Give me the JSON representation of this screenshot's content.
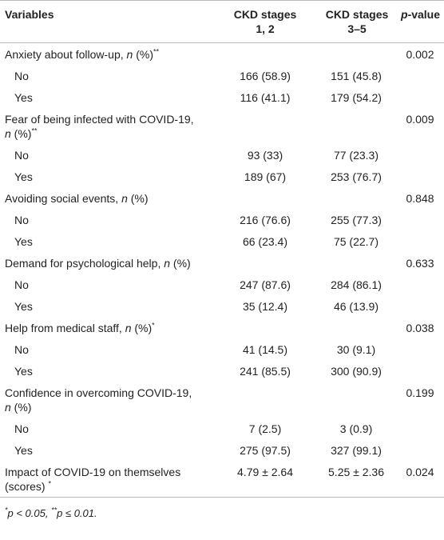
{
  "header": {
    "variables": "Variables",
    "ckd_1_2": "CKD stages 1, 2",
    "ckd_3_5": "CKD stages 3–5",
    "p_value": [
      {
        "text": "p",
        "italic": true
      },
      {
        "text": "-value"
      }
    ]
  },
  "variables": [
    {
      "label": [
        {
          "text": "Anxiety about follow-up, "
        },
        {
          "text": "n",
          "italic": true
        },
        {
          "text": " (%)"
        },
        {
          "text": "**",
          "sup": true
        }
      ],
      "p_value": "0.002",
      "levels": [
        {
          "label": "No",
          "ckd_1_2": "166 (58.9)",
          "ckd_3_5": "151 (45.8)"
        },
        {
          "label": "Yes",
          "ckd_1_2": "116 (41.1)",
          "ckd_3_5": "179 (54.2)"
        }
      ]
    },
    {
      "label": [
        {
          "text": "Fear of being infected with COVID-19, "
        },
        {
          "text": "n",
          "italic": true
        },
        {
          "text": " (%)"
        },
        {
          "text": "**",
          "sup": true
        }
      ],
      "p_value": "0.009",
      "levels": [
        {
          "label": "No",
          "ckd_1_2": "93 (33)",
          "ckd_3_5": "77 (23.3)"
        },
        {
          "label": "Yes",
          "ckd_1_2": "189 (67)",
          "ckd_3_5": "253 (76.7)"
        }
      ]
    },
    {
      "label": [
        {
          "text": "Avoiding social events, "
        },
        {
          "text": "n",
          "italic": true
        },
        {
          "text": " (%)"
        }
      ],
      "p_value": "0.848",
      "levels": [
        {
          "label": "No",
          "ckd_1_2": "216 (76.6)",
          "ckd_3_5": "255 (77.3)"
        },
        {
          "label": "Yes",
          "ckd_1_2": "66 (23.4)",
          "ckd_3_5": "75 (22.7)"
        }
      ]
    },
    {
      "label": [
        {
          "text": "Demand for psychological help, "
        },
        {
          "text": "n",
          "italic": true
        },
        {
          "text": " (%)"
        }
      ],
      "p_value": "0.633",
      "levels": [
        {
          "label": "No",
          "ckd_1_2": "247 (87.6)",
          "ckd_3_5": "284 (86.1)"
        },
        {
          "label": "Yes",
          "ckd_1_2": "35 (12.4)",
          "ckd_3_5": "46 (13.9)"
        }
      ]
    },
    {
      "label": [
        {
          "text": "Help from medical staff, "
        },
        {
          "text": "n",
          "italic": true
        },
        {
          "text": " (%)"
        },
        {
          "text": "*",
          "sup": true
        }
      ],
      "p_value": "0.038",
      "levels": [
        {
          "label": "No",
          "ckd_1_2": "41 (14.5)",
          "ckd_3_5": "30 (9.1)"
        },
        {
          "label": "Yes",
          "ckd_1_2": "241 (85.5)",
          "ckd_3_5": "300 (90.9)"
        }
      ]
    },
    {
      "label": [
        {
          "text": "Confidence in overcoming COVID-19, "
        },
        {
          "text": "n",
          "italic": true
        },
        {
          "text": " (%)"
        }
      ],
      "p_value": "0.199",
      "levels": [
        {
          "label": "No",
          "ckd_1_2": "7 (2.5)",
          "ckd_3_5": "3 (0.9)"
        },
        {
          "label": "Yes",
          "ckd_1_2": "275 (97.5)",
          "ckd_3_5": "327 (99.1)"
        }
      ]
    },
    {
      "label": [
        {
          "text": "Impact of COVID-19 on themselves (scores) "
        },
        {
          "text": "*",
          "sup": true
        }
      ],
      "p_value": "0.024",
      "ckd_1_2": "4.79 ± 2.64",
      "ckd_3_5": "5.25 ± 2.36"
    }
  ],
  "footnote": [
    {
      "text": "*",
      "sup": true
    },
    {
      "text": "p < 0.05, "
    },
    {
      "text": "**",
      "sup": true
    },
    {
      "text": "p ≤ 0.01."
    }
  ]
}
